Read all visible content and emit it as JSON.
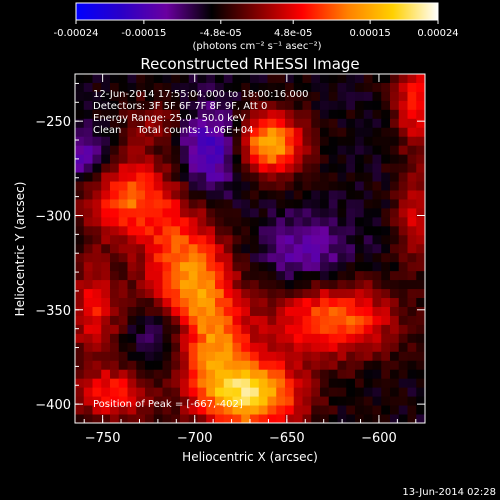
{
  "colorbar": {
    "tick_labels": [
      "-0.00024",
      "-0.00015",
      "-4.8e-05",
      "4.8e-05",
      "0.00015",
      "0.00024"
    ],
    "tick_values": [
      -0.00024,
      -0.00015,
      -4.8e-05,
      4.8e-05,
      0.00015,
      0.00024
    ],
    "range": [
      -0.00024,
      0.00024
    ],
    "unit_label": "(photons cm⁻² s⁻¹ asec⁻²)",
    "gradient_colors": [
      "#0000ff",
      "#2a00c8",
      "#6a00a0",
      "#000000",
      "#800000",
      "#ff0000",
      "#ff8000",
      "#ffd000",
      "#ffffff"
    ]
  },
  "chart_data": {
    "type": "heatmap",
    "title": "Reconstructed RHESSI Image",
    "xlabel": "Heliocentric X (arcsec)",
    "ylabel": "Heliocentric Y (arcsec)",
    "xlim": [
      -765,
      -575
    ],
    "ylim": [
      -410,
      -225
    ],
    "x_ticks": [
      -750,
      -700,
      -650,
      -600
    ],
    "x_tick_labels": [
      "−750",
      "−700",
      "−650",
      "−600"
    ],
    "y_ticks": [
      -250,
      -300,
      -350,
      -400
    ],
    "y_tick_labels": [
      "−250",
      "−300",
      "−350",
      "−400"
    ],
    "info_lines": [
      "12-Jun-2014 17:55:04.000 to 18:00:16.000",
      "Detectors: 3F 5F 6F 7F 8F 9F, Att 0",
      "Energy Range: 25.0 - 50.0 keV",
      "Clean     Total counts: 1.06E+04"
    ],
    "peak_label": "Position of Peak = [-667,-402]",
    "sources": [
      {
        "x": -660,
        "y": -262,
        "intensity": 0.00022,
        "sx": 14,
        "sy": 12
      },
      {
        "x": -735,
        "y": -290,
        "intensity": 0.00016,
        "sx": 18,
        "sy": 16
      },
      {
        "x": -705,
        "y": -330,
        "intensity": 0.00018,
        "sx": 16,
        "sy": 22
      },
      {
        "x": -670,
        "y": -395,
        "intensity": 0.00024,
        "sx": 20,
        "sy": 14
      },
      {
        "x": -625,
        "y": -355,
        "intensity": 0.00017,
        "sx": 24,
        "sy": 14
      },
      {
        "x": -755,
        "y": -350,
        "intensity": 0.00012,
        "sx": 10,
        "sy": 18
      },
      {
        "x": -580,
        "y": -240,
        "intensity": 0.00014,
        "sx": 8,
        "sy": 16
      },
      {
        "x": -580,
        "y": -300,
        "intensity": 0.0001,
        "sx": 8,
        "sy": 18
      },
      {
        "x": -745,
        "y": -395,
        "intensity": 0.00013,
        "sx": 14,
        "sy": 10
      },
      {
        "x": -720,
        "y": -250,
        "intensity": 6e-05,
        "sx": 12,
        "sy": 10
      },
      {
        "x": -690,
        "y": -365,
        "intensity": 0.00015,
        "sx": 14,
        "sy": 20
      }
    ],
    "negative_regions": [
      {
        "x": -690,
        "y": -265,
        "intensity": -0.00012,
        "sx": 14,
        "sy": 16
      },
      {
        "x": -715,
        "y": -360,
        "intensity": -8e-05,
        "sx": 12,
        "sy": 12
      },
      {
        "x": -640,
        "y": -320,
        "intensity": -7e-05,
        "sx": 18,
        "sy": 14
      },
      {
        "x": -760,
        "y": -270,
        "intensity": -9e-05,
        "sx": 10,
        "sy": 10
      }
    ]
  },
  "footer": {
    "timestamp": "13-Jun-2014 02:28"
  }
}
